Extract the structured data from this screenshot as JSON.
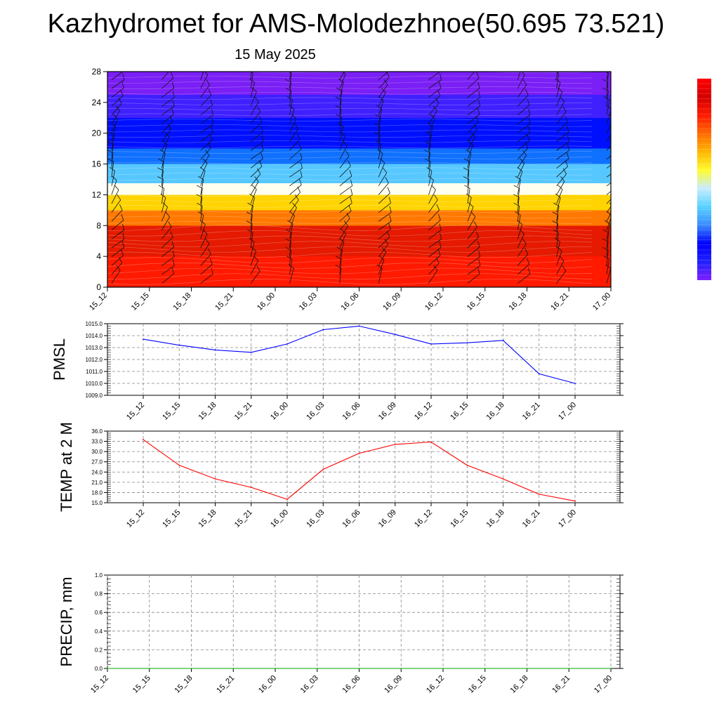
{
  "header": {
    "title": "Kazhydromet for AMS-Molodezhnoe(50.695 73.521)",
    "date": "15 May 2025"
  },
  "colors": {
    "pmsl_line": "#0000ff",
    "temp_line": "#ff0000",
    "precip_line": "#00aa00",
    "grid": "#888888",
    "colorbar": [
      "#7f1fff",
      "#2020ff",
      "#0000ff",
      "#3a8cff",
      "#57d2ff",
      "#c8ecff",
      "#fffb2e",
      "#ffb700",
      "#ff6a00",
      "#ff1a00",
      "#d40000",
      "#ff0000"
    ]
  },
  "chart_data": [
    {
      "type": "heatmap",
      "description_layers": "wind barbs over filled contours",
      "xticklabels": [
        "15_12",
        "15_15",
        "15_18",
        "15_21",
        "16_00",
        "16_03",
        "16_06",
        "16_09",
        "16_12",
        "16_15",
        "16_18",
        "16_21",
        "17_00"
      ],
      "yticklabels": [
        "0",
        "4",
        "8",
        "12",
        "16",
        "20",
        "24",
        "28"
      ],
      "ylim": [
        0,
        28
      ],
      "bands": [
        {
          "from": 0,
          "to": 4,
          "color": "#ff1a00"
        },
        {
          "from": 4,
          "to": 8,
          "color": "#e51a00"
        },
        {
          "from": 8,
          "to": 10,
          "color": "#ff7800"
        },
        {
          "from": 10,
          "to": 12,
          "color": "#ffd400"
        },
        {
          "from": 12,
          "to": 13.5,
          "color": "#fffff0"
        },
        {
          "from": 13.5,
          "to": 16,
          "color": "#57c8ff"
        },
        {
          "from": 16,
          "to": 18,
          "color": "#1070ff"
        },
        {
          "from": 18,
          "to": 22,
          "color": "#0010ff"
        },
        {
          "from": 22,
          "to": 25,
          "color": "#4020ff"
        },
        {
          "from": 25,
          "to": 28,
          "color": "#7a1ff5"
        }
      ]
    },
    {
      "type": "line",
      "ylabel": "PMSL",
      "x": [
        "15_12",
        "15_15",
        "15_18",
        "15_21",
        "16_00",
        "16_03",
        "16_06",
        "16_09",
        "16_12",
        "16_15",
        "16_18",
        "16_21",
        "17_00"
      ],
      "values": [
        1013.7,
        1013.2,
        1012.8,
        1012.6,
        1013.3,
        1014.5,
        1014.8,
        1014.1,
        1013.3,
        1013.4,
        1013.6,
        1010.8,
        1010.0
      ],
      "ylim": [
        1009.0,
        1015.0
      ],
      "yticklabels": [
        "1009.0",
        "1010.0",
        "1011.0",
        "1012.0",
        "1013.0",
        "1014.0",
        "1015.0"
      ],
      "grid": true
    },
    {
      "type": "line",
      "ylabel": "TEMP at 2 M",
      "x": [
        "15_12",
        "15_15",
        "15_18",
        "15_21",
        "16_00",
        "16_03",
        "16_06",
        "16_09",
        "16_12",
        "16_15",
        "16_18",
        "16_21",
        "17_00"
      ],
      "values": [
        33.5,
        26.0,
        22.0,
        19.5,
        16.0,
        24.8,
        29.5,
        32.1,
        32.8,
        26.0,
        22.0,
        17.5,
        15.5
      ],
      "ylim": [
        15.0,
        36.0
      ],
      "yticklabels": [
        "15.0",
        "18.0",
        "21.0",
        "24.0",
        "27.0",
        "30.0",
        "33.0",
        "36.0"
      ],
      "grid": true
    },
    {
      "type": "line",
      "ylabel": "PRECIP, mm",
      "xticklabels": [
        "15_12",
        "15_15",
        "15_18",
        "15_21",
        "16_00",
        "16_03",
        "16_06",
        "16_09",
        "16_12",
        "16_15",
        "16_18",
        "16_21",
        "17_00"
      ],
      "values": [
        0,
        0,
        0,
        0,
        0,
        0,
        0,
        0,
        0,
        0,
        0,
        0,
        0
      ],
      "ylim": [
        0.0,
        1.0
      ],
      "yticklabels": [
        "0.0",
        "0.2",
        "0.4",
        "0.6",
        "0.8",
        "1.0"
      ],
      "grid": true
    }
  ]
}
